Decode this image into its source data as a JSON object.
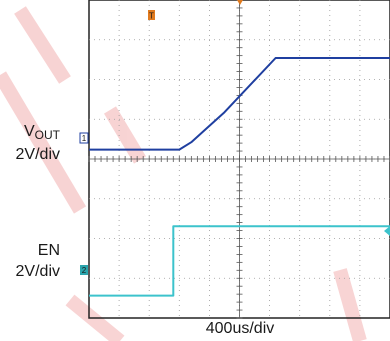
{
  "chart_data": {
    "type": "line",
    "title": "",
    "xlabel": "400us/div",
    "traces": [
      {
        "channel": "1",
        "label_main": "V",
        "label_sub": "OUT",
        "scale": "2V/div",
        "color": "#1f3fa0",
        "x": [
          0,
          0.3,
          0.34,
          0.45,
          0.62,
          0.78,
          1.0
        ],
        "y": [
          -0.1,
          -0.1,
          0.1,
          0.9,
          2.35,
          2.35,
          2.35
        ]
      },
      {
        "channel": "2",
        "label": "EN",
        "scale": "2V/div",
        "color": "#3cc3cc",
        "x": [
          0,
          0.28,
          0.28,
          1.0
        ],
        "y": [
          -4.0,
          -4.0,
          -2.15,
          -2.15
        ]
      }
    ],
    "x_range": [
      0,
      1
    ],
    "y_range": [
      -4.6,
      3.9
    ],
    "grid": true,
    "trigger_marker": "T",
    "trigger_color": "#e07a1f"
  },
  "axes": {
    "time_scale": "400us/div"
  },
  "ch1": {
    "label_main": "V",
    "label_sub": "OUT",
    "scale": "2V/div",
    "marker": "1"
  },
  "ch2": {
    "label": "EN",
    "scale": "2V/div",
    "marker": "2"
  }
}
